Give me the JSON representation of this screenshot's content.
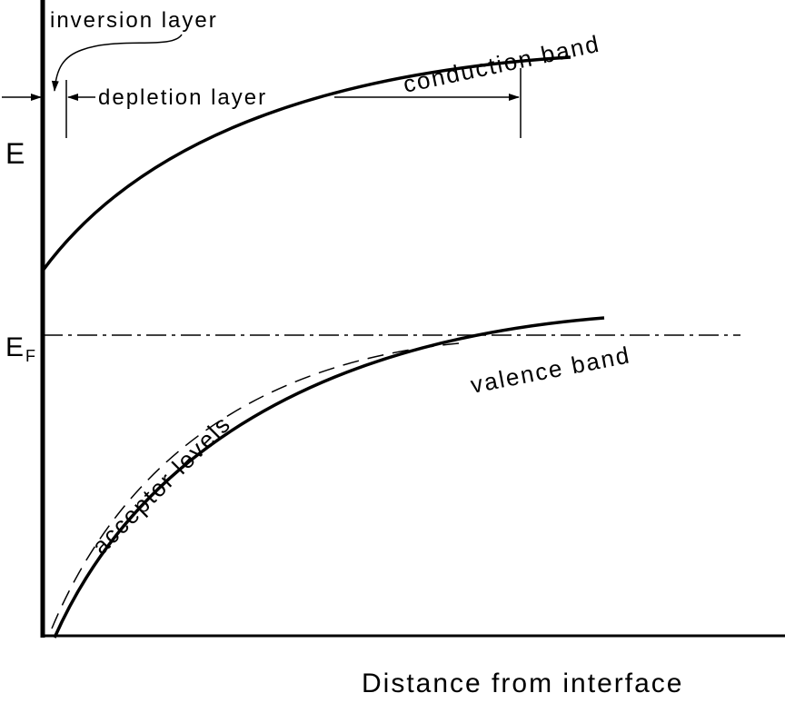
{
  "labels": {
    "inversion_layer": "inversion layer",
    "depletion_layer": "depletion layer",
    "conduction_band": "conduction band",
    "energy_axis": "E",
    "fermi_level": {
      "main": "E",
      "subscript": "F"
    },
    "acceptor_levels": "acceptor levels",
    "valence_band": "valence band",
    "distance_axis": "Distance from interface"
  }
}
